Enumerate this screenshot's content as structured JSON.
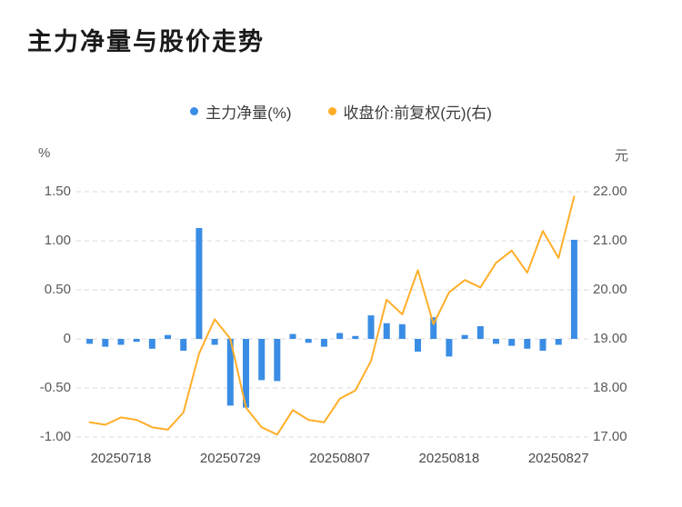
{
  "page": {
    "title": "主力净量与股价走势"
  },
  "legend": {
    "items": [
      {
        "label": "主力净量(%)",
        "color": "#3a8de4"
      },
      {
        "label": "收盘价:前复权(元)(右)",
        "color": "#ffae29"
      }
    ]
  },
  "axes": {
    "left_unit": "%",
    "right_unit": "元",
    "left_tick_labels": [
      "1.50",
      "1.00",
      "0.50",
      "0",
      "-0.50",
      "-1.00"
    ],
    "right_tick_labels": [
      "22.00",
      "21.00",
      "20.00",
      "19.00",
      "18.00",
      "17.00"
    ],
    "x_labels": [
      "20250718",
      "20250729",
      "20250807",
      "20250818",
      "20250827"
    ]
  },
  "chart_data": {
    "type": "combo",
    "title": "主力净量与股价走势",
    "x": [
      "20250716",
      "20250717",
      "20250718",
      "20250721",
      "20250722",
      "20250723",
      "20250724",
      "20250725",
      "20250728",
      "20250729",
      "20250730",
      "20250731",
      "20250801",
      "20250804",
      "20250805",
      "20250806",
      "20250807",
      "20250808",
      "20250811",
      "20250812",
      "20250813",
      "20250814",
      "20250815",
      "20250818",
      "20250819",
      "20250820",
      "20250821",
      "20250822",
      "20250825",
      "20250826",
      "20250827",
      "20250828"
    ],
    "x_label_indices": [
      2,
      9,
      16,
      23,
      30
    ],
    "series": [
      {
        "name": "主力净量(%)",
        "type": "bar",
        "axis": "left",
        "color": "#3a8de4",
        "values": [
          -0.05,
          -0.08,
          -0.06,
          -0.03,
          -0.1,
          0.04,
          -0.12,
          1.13,
          -0.06,
          -0.68,
          -0.7,
          -0.42,
          -0.43,
          0.05,
          -0.04,
          -0.08,
          0.06,
          0.03,
          0.24,
          0.16,
          0.15,
          -0.13,
          0.22,
          -0.18,
          0.04,
          0.13,
          -0.05,
          -0.07,
          -0.1,
          -0.12,
          -0.06,
          1.01
        ]
      },
      {
        "name": "收盘价:前复权(元)(右)",
        "type": "line",
        "axis": "right",
        "color": "#ffae29",
        "values": [
          17.3,
          17.25,
          17.4,
          17.35,
          17.2,
          17.15,
          17.5,
          18.7,
          19.4,
          19.0,
          17.6,
          17.2,
          17.05,
          17.55,
          17.35,
          17.3,
          17.78,
          17.95,
          18.55,
          19.8,
          19.5,
          20.4,
          19.3,
          19.95,
          20.2,
          20.05,
          20.55,
          20.8,
          20.35,
          21.2,
          20.65,
          21.9
        ]
      }
    ],
    "left_axis": {
      "label": "%",
      "min": -1.0,
      "max": 1.5,
      "ticks": [
        1.5,
        1.0,
        0.5,
        0,
        -0.5,
        -1.0
      ]
    },
    "right_axis": {
      "label": "元",
      "min": 17.0,
      "max": 22.0,
      "ticks": [
        22,
        21,
        20,
        19,
        18,
        17
      ]
    },
    "grid": "horizontal dashed",
    "legend_position": "top center"
  }
}
